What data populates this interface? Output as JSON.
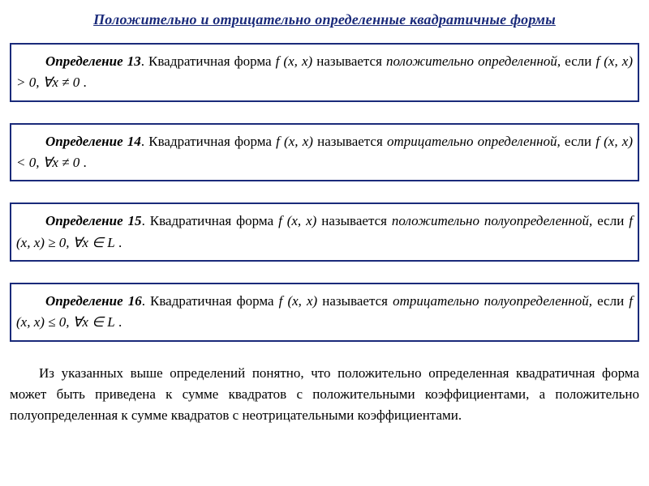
{
  "title": "Положительно и отрицательно определенные квадратичные формы",
  "colors": {
    "accent": "#1a2a7a",
    "text": "#000000",
    "background": "#ffffff"
  },
  "defs": {
    "d13": {
      "lead": "Определение 13",
      "pre": ". Квадратичная форма ",
      "fxx": "f (x, x)",
      "mid": " называется ",
      "term": "положительно определенной,",
      "post1": " если ",
      "cond": "f (x, x) > 0,   ∀x ≠ 0",
      "post2": " ."
    },
    "d14": {
      "lead": "Определение 14",
      "pre": ". Квадратичная форма ",
      "fxx": "f (x, x)",
      "mid": " называется ",
      "term": "отрицательно определенной,",
      "post1": " если ",
      "cond": "f (x, x) < 0,   ∀x ≠ 0",
      "post2": " ."
    },
    "d15": {
      "lead": "Определение 15",
      "pre": ". Квадратичная форма ",
      "fxx": "f (x, x)",
      "mid": " называется ",
      "term": "положительно полуопределенной,",
      "post1": " если ",
      "cond": "f (x, x) ≥ 0,   ∀x ∈ L",
      "post2": " ."
    },
    "d16": {
      "lead": "Определение 16",
      "pre": ". Квадратичная форма ",
      "fxx": "f (x, x)",
      "mid": " называется ",
      "term": "отрицательно полуопределенной,",
      "post1": " если ",
      "cond": "f (x, x) ≤ 0,   ∀x ∈ L",
      "post2": " ."
    }
  },
  "paragraph": "Из указанных выше определений понятно, что положительно определенная квадратичная форма может быть приведена к сумме квадратов с положительными коэффициентами, а положительно полуопределенная к сумме квадратов с неотрицательными коэффициентами."
}
